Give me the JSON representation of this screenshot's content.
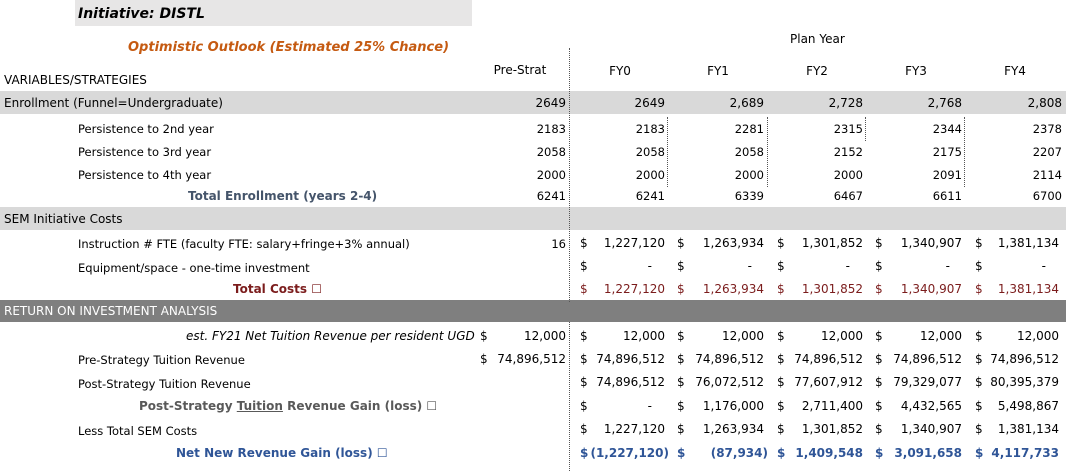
{
  "initiative": "Initiative: DISTL",
  "outlook": "Optimistic Outlook (Estimated 25% Chance)",
  "plan_year": "Plan Year",
  "variables_header": "VARIABLES/STRATEGIES",
  "columns": [
    "Pre-Strat",
    "FY0",
    "FY1",
    "FY2",
    "FY3",
    "FY4"
  ],
  "enrollment": {
    "label": "Enrollment (Funnel=Undergraduate)",
    "values": [
      "2649",
      "2649",
      "2,689",
      "2,728",
      "2,768",
      "2,808"
    ]
  },
  "persistence2": {
    "label": "Persistence to 2nd year",
    "values": [
      "2183",
      "2183",
      "2281",
      "2315",
      "2344",
      "2378"
    ]
  },
  "persistence3": {
    "label": "Persistence to 3rd year",
    "values": [
      "2058",
      "2058",
      "2058",
      "2152",
      "2175",
      "2207"
    ]
  },
  "persistence4": {
    "label": "Persistence to 4th year",
    "values": [
      "2000",
      "2000",
      "2000",
      "2000",
      "2091",
      "2114"
    ]
  },
  "total_enrollment": {
    "label": "Total Enrollment (years 2-4)",
    "values": [
      "6241",
      "6241",
      "6339",
      "6467",
      "6611",
      "6700"
    ]
  },
  "sem_costs_header": "SEM Initiative Costs",
  "instruction": {
    "label": "Instruction # FTE (faculty FTE: salary+fringe+3% annual)",
    "pre": "16",
    "values": [
      "1,227,120",
      "1,263,934",
      "1,301,852",
      "1,340,907",
      "1,381,134"
    ]
  },
  "equipment": {
    "label": "Equipment/space - one-time investment",
    "values": [
      "-",
      "-",
      "-",
      "-",
      "-"
    ]
  },
  "total_costs": {
    "label": "Total Costs ☐",
    "values": [
      "1,227,120",
      "1,263,934",
      "1,301,852",
      "1,340,907",
      "1,381,134"
    ]
  },
  "roi_header": "RETURN ON INVESTMENT ANALYSIS",
  "net_tuition": {
    "label": "est. FY21 Net Tuition Revenue per resident UGD",
    "values": [
      "12,000",
      "12,000",
      "12,000",
      "12,000",
      "12,000",
      "12,000"
    ]
  },
  "pre_tuition": {
    "label": "Pre-Strategy Tuition Revenue",
    "values": [
      "74,896,512",
      "74,896,512",
      "74,896,512",
      "74,896,512",
      "74,896,512",
      "74,896,512"
    ]
  },
  "post_tuition": {
    "label": "Post-Strategy Tuition Revenue",
    "values": [
      "74,896,512",
      "76,072,512",
      "77,607,912",
      "79,329,077",
      "80,395,379"
    ]
  },
  "post_gain": {
    "label_a": "Post-Strategy ",
    "label_b": "Tuition",
    "label_c": " Revenue Gain (loss) ☐",
    "values": [
      "-",
      "1,176,000",
      "2,711,400",
      "4,432,565",
      "5,498,867"
    ]
  },
  "less_sem": {
    "label": "Less Total SEM Costs",
    "values": [
      "1,227,120",
      "1,263,934",
      "1,301,852",
      "1,340,907",
      "1,381,134"
    ]
  },
  "net_gain": {
    "label": "Net New Revenue Gain (loss) ☐",
    "values": [
      "(1,227,120)",
      "(87,934)",
      "1,409,548",
      "3,091,658",
      "4,117,733"
    ]
  },
  "dollar": "$",
  "colors": {
    "gray_band": "#d9d9d9",
    "roi_band": "#7f7f7f",
    "title_band": "#e7e6e6",
    "orange": "#c55a11",
    "maroon": "#7b1c1c",
    "blue": "#2f5597"
  }
}
